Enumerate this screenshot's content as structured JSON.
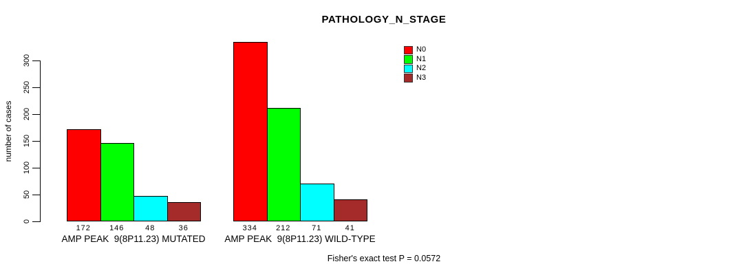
{
  "title": "PATHOLOGY_N_STAGE",
  "chart_data": {
    "type": "bar",
    "title": "PATHOLOGY_N_STAGE",
    "ylabel": "number of cases",
    "xlabel": "",
    "categories": [
      "AMP PEAK  9(8P11.23) MUTATED",
      "AMP PEAK  9(8P11.23) WILD-TYPE"
    ],
    "series": [
      {
        "name": "N0",
        "color": "#ff0000",
        "values": [
          172,
          334
        ]
      },
      {
        "name": "N1",
        "color": "#00ff00",
        "values": [
          146,
          212
        ]
      },
      {
        "name": "N2",
        "color": "#00ffff",
        "values": [
          48,
          71
        ]
      },
      {
        "name": "N3",
        "color": "#a52a2a",
        "values": [
          36,
          41
        ]
      }
    ],
    "yticks": [
      0,
      50,
      100,
      150,
      200,
      250,
      300
    ],
    "ylim": [
      0,
      347
    ],
    "grid": false,
    "legend_position": "top-right",
    "bar_value_labels_shown": true,
    "annotation": "Fisher's exact test P = 0.0572"
  }
}
